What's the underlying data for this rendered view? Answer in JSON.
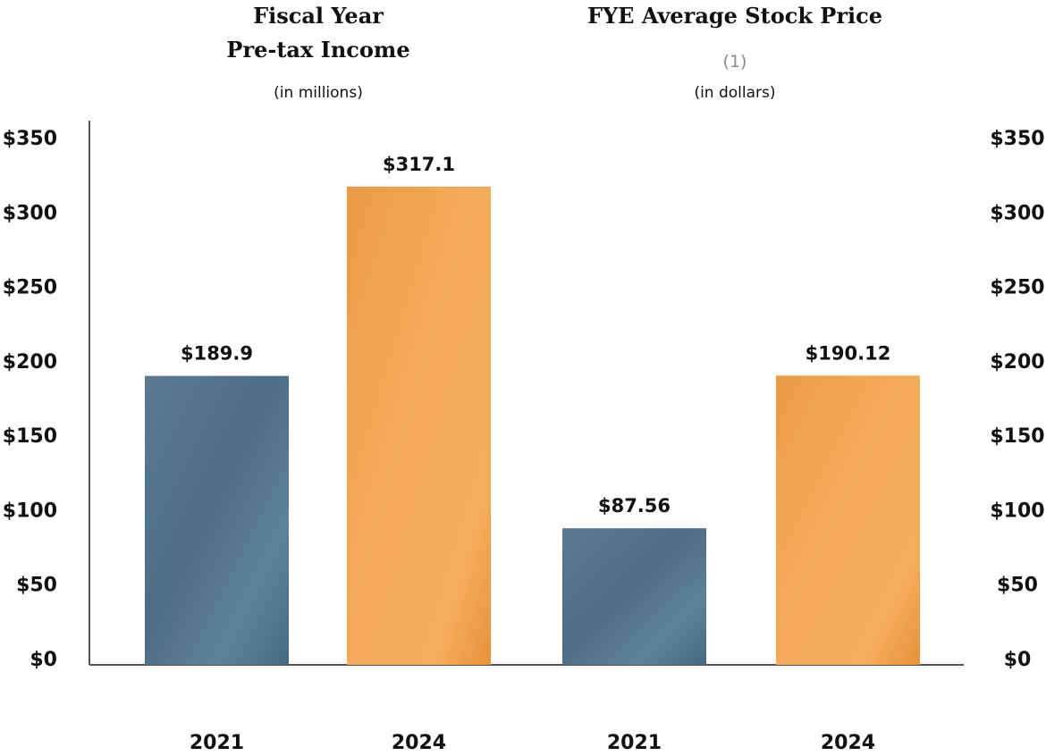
{
  "chart_data": [
    {
      "type": "bar",
      "title": "Fiscal Year",
      "subtitle": "Pre-tax Income",
      "units_note": "(in millions)",
      "categories": [
        "2021",
        "2024"
      ],
      "values": [
        189.9,
        317.1
      ],
      "data_labels": [
        "$189.9",
        "$317.1"
      ],
      "ylim": [
        0,
        350
      ],
      "y_ticks": [
        "$0",
        "$50",
        "$100",
        "$150",
        "$200",
        "$250",
        "$300",
        "$350"
      ],
      "y_axis_side": "left",
      "colors": [
        "#4e7189",
        "#f0a24e"
      ]
    },
    {
      "type": "bar",
      "title": "FYE Average Stock Price",
      "footnote": "(1)",
      "units_note": "(in dollars)",
      "categories": [
        "2021",
        "2024"
      ],
      "values": [
        87.56,
        190.12
      ],
      "data_labels": [
        "$87.56",
        "$190.12"
      ],
      "ylim": [
        0,
        350
      ],
      "y_ticks": [
        "$0",
        "$50",
        "$100",
        "$150",
        "$200",
        "$250",
        "$300",
        "$350"
      ],
      "y_axis_side": "right",
      "colors": [
        "#4e7189",
        "#f0a24e"
      ]
    }
  ]
}
